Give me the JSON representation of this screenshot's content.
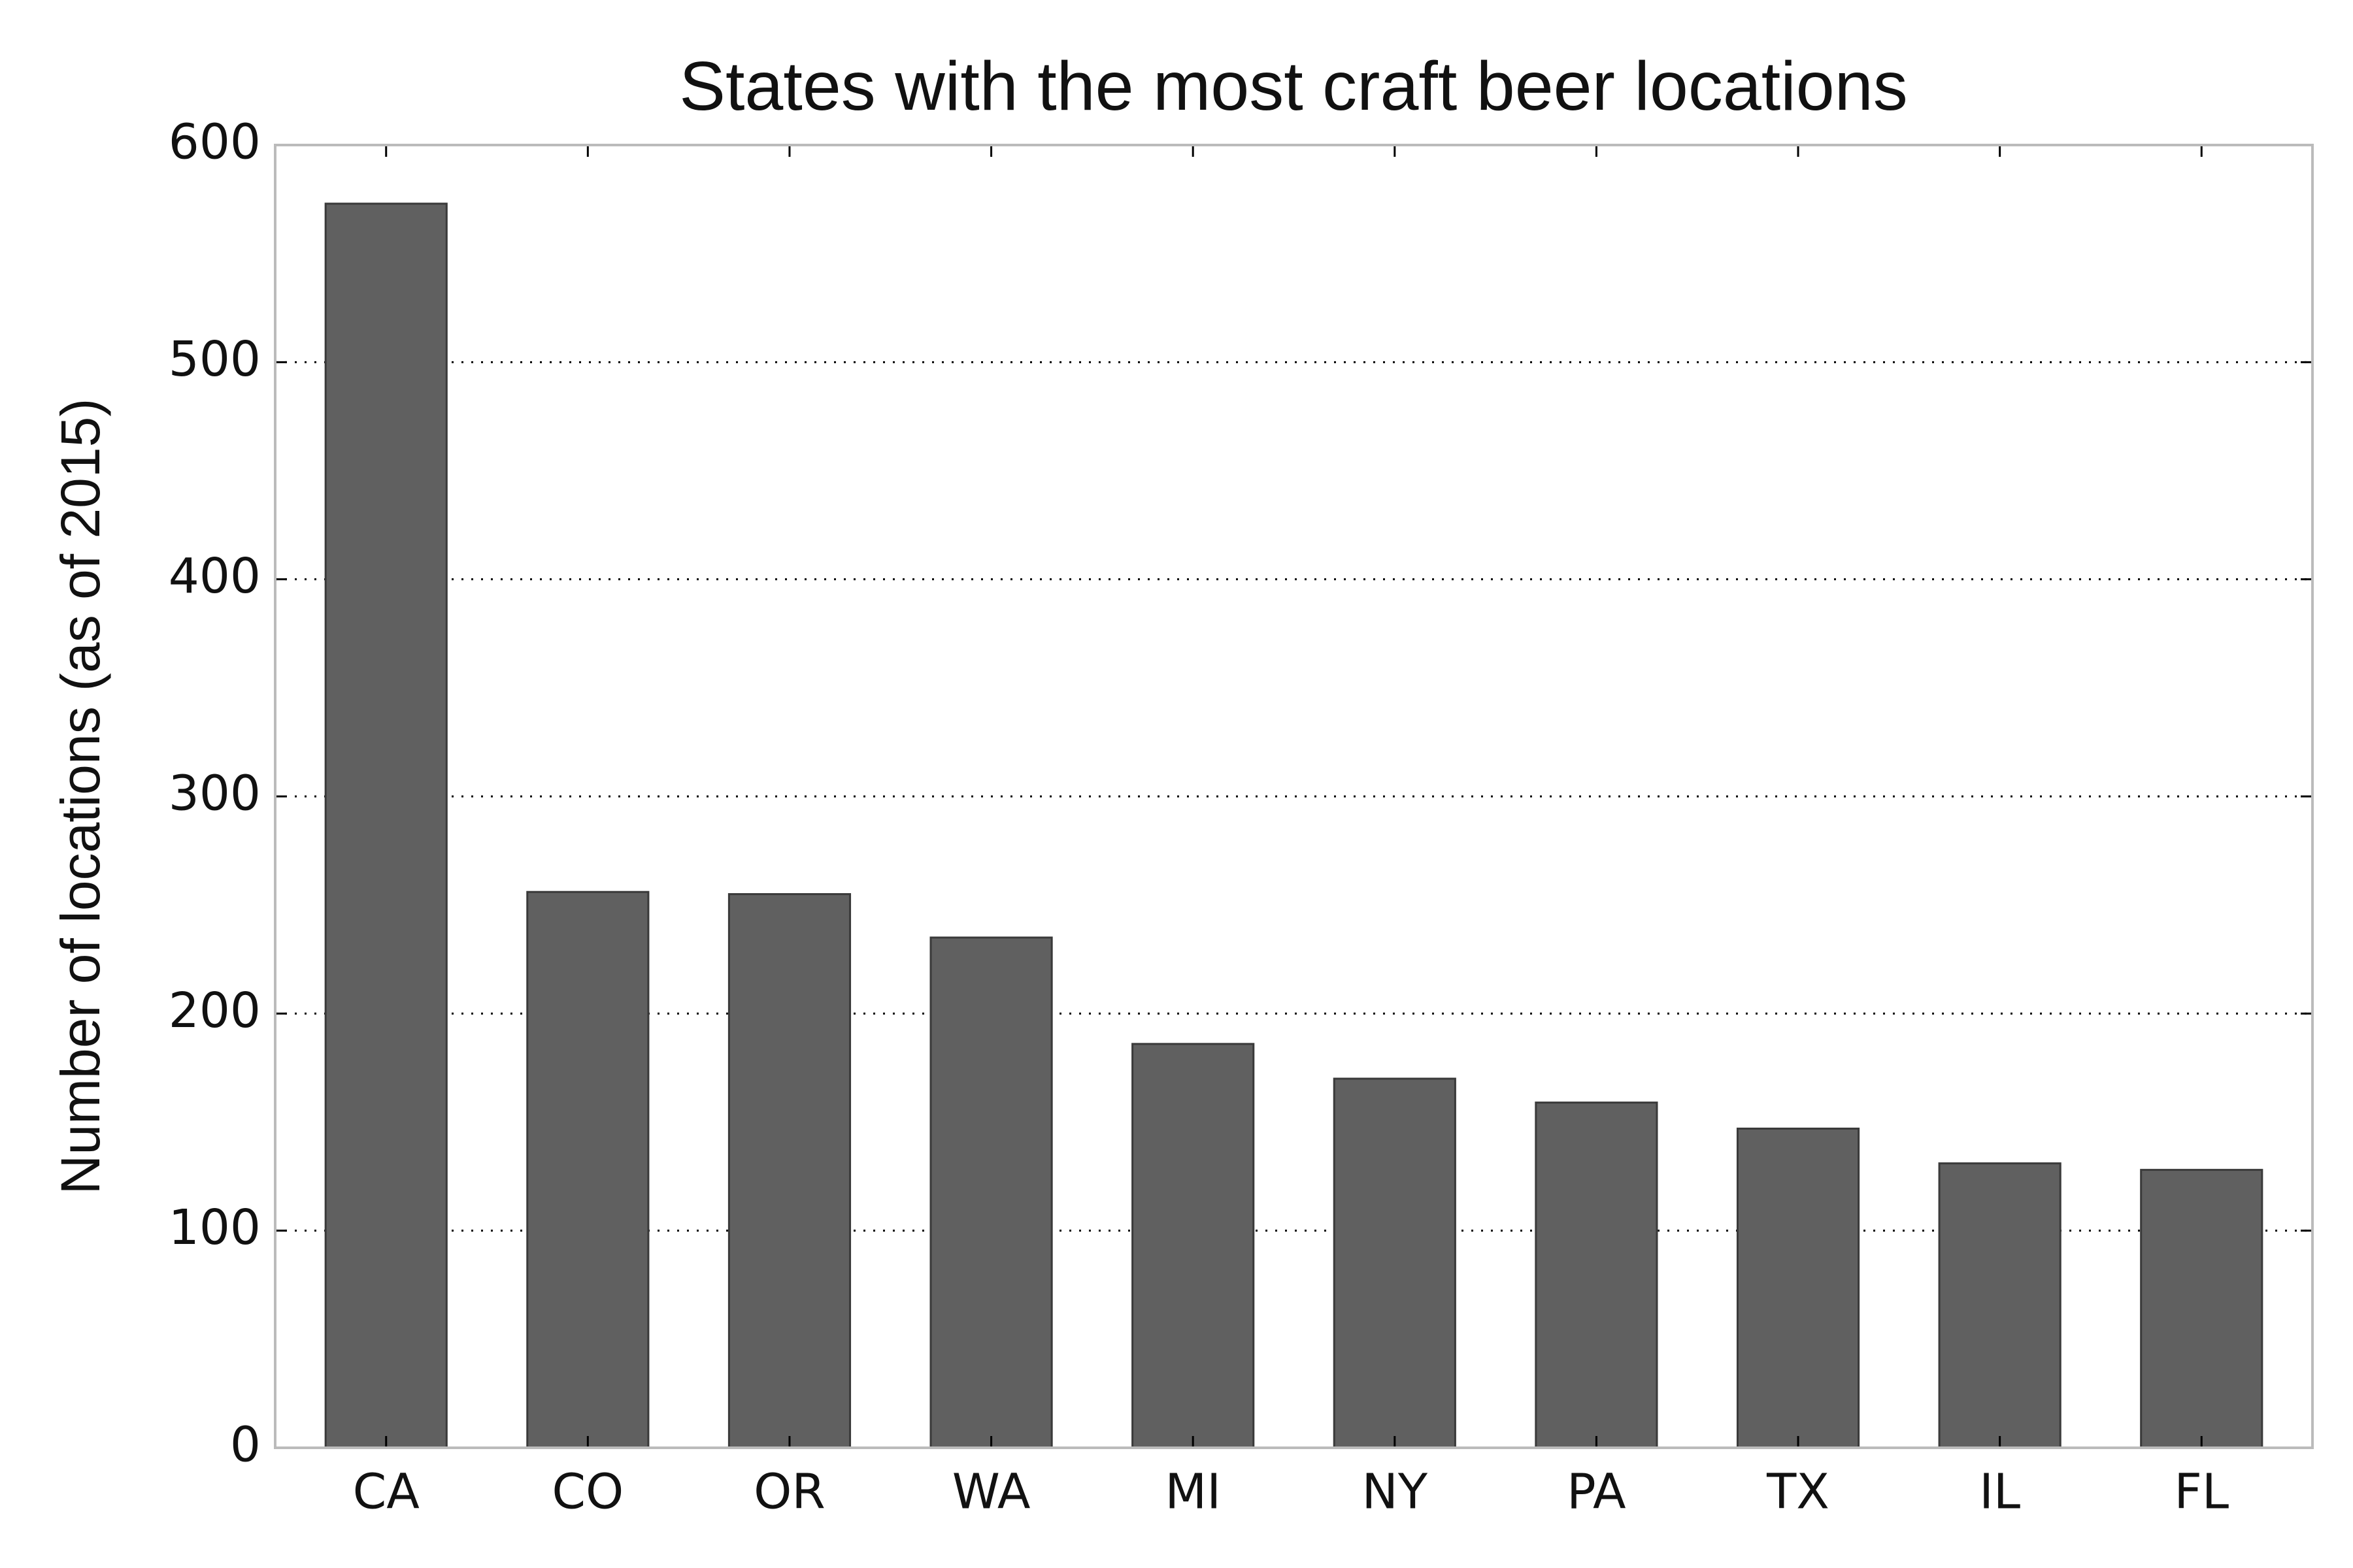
{
  "chart_data": {
    "type": "bar",
    "title": "States with the most craft beer locations",
    "y_label": "Number of locations (as of 2015)",
    "categories": [
      "CA",
      "CO",
      "OR",
      "WA",
      "MI",
      "NY",
      "PA",
      "TX",
      "IL",
      "FL"
    ],
    "values": [
      573,
      256,
      255,
      235,
      186,
      170,
      159,
      147,
      131,
      128
    ],
    "color": "#606060",
    "ylim": [
      0,
      600
    ],
    "yticks": [
      0,
      100,
      200,
      300,
      400,
      500,
      600
    ],
    "grid": true
  }
}
